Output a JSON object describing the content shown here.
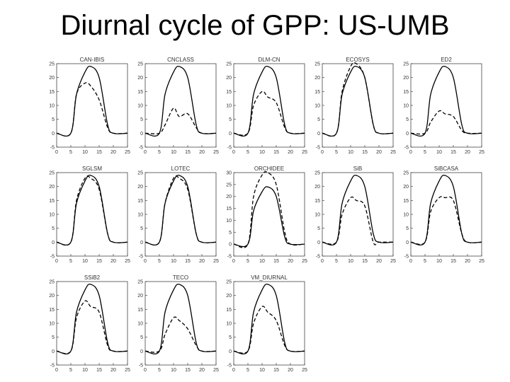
{
  "slide": {
    "title": "Diurnal cycle of GPP: US-UMB"
  },
  "chart_data": [
    {
      "type": "line",
      "title": "CAN-IBIS",
      "x": [
        0,
        5,
        7,
        10,
        12,
        15,
        18,
        20,
        25
      ],
      "xlim": [
        0,
        25
      ],
      "ylim": [
        -5,
        25
      ],
      "yticks": [
        -5,
        0,
        5,
        10,
        15,
        20,
        25
      ],
      "xticks": [
        0,
        5,
        10,
        15,
        20,
        25
      ],
      "series": [
        {
          "style": "solid",
          "values": [
            0,
            0,
            14,
            22,
            24,
            20,
            3,
            0,
            0
          ]
        },
        {
          "style": "dashed",
          "values": [
            0,
            0,
            14,
            18,
            17,
            12,
            2,
            0,
            0
          ]
        }
      ]
    },
    {
      "type": "line",
      "title": "CNCLASS",
      "x": [
        0,
        5,
        7,
        10,
        12,
        15,
        18,
        20,
        25
      ],
      "xlim": [
        0,
        25
      ],
      "ylim": [
        -5,
        25
      ],
      "yticks": [
        -5,
        0,
        5,
        10,
        15,
        20,
        25
      ],
      "xticks": [
        0,
        5,
        10,
        15,
        20,
        25
      ],
      "series": [
        {
          "style": "solid",
          "values": [
            0,
            0,
            14,
            22,
            24,
            20,
            3,
            0,
            0
          ]
        },
        {
          "style": "dashed",
          "values": [
            0,
            0,
            3,
            9,
            6,
            7,
            2,
            0,
            0
          ]
        }
      ]
    },
    {
      "type": "line",
      "title": "DLM-CN",
      "x": [
        0,
        5,
        7,
        10,
        12,
        15,
        18,
        20,
        25
      ],
      "xlim": [
        0,
        25
      ],
      "ylim": [
        -5,
        25
      ],
      "yticks": [
        -5,
        0,
        5,
        10,
        15,
        20,
        25
      ],
      "xticks": [
        0,
        5,
        10,
        15,
        20,
        25
      ],
      "series": [
        {
          "style": "solid",
          "values": [
            0,
            0,
            14,
            22,
            24,
            20,
            3,
            0,
            0
          ]
        },
        {
          "style": "dashed",
          "values": [
            0,
            0,
            10,
            15,
            13,
            11,
            2,
            0,
            0
          ]
        }
      ]
    },
    {
      "type": "line",
      "title": "ECOSYS",
      "x": [
        0,
        5,
        7,
        10,
        12,
        15,
        18,
        20,
        25
      ],
      "xlim": [
        0,
        25
      ],
      "ylim": [
        -5,
        25
      ],
      "yticks": [
        -5,
        0,
        5,
        10,
        15,
        20,
        25
      ],
      "xticks": [
        0,
        5,
        10,
        15,
        20,
        25
      ],
      "series": [
        {
          "style": "solid",
          "values": [
            0,
            0,
            14,
            22,
            24,
            20,
            3,
            0,
            0
          ]
        },
        {
          "style": "dashed",
          "values": [
            0,
            0,
            15,
            24,
            25,
            20,
            3,
            0,
            0
          ]
        }
      ]
    },
    {
      "type": "line",
      "title": "ED2",
      "x": [
        0,
        5,
        7,
        10,
        12,
        15,
        18,
        20,
        25
      ],
      "xlim": [
        0,
        25
      ],
      "ylim": [
        -5,
        25
      ],
      "yticks": [
        -5,
        0,
        5,
        10,
        15,
        20,
        25
      ],
      "xticks": [
        0,
        5,
        10,
        15,
        20,
        25
      ],
      "series": [
        {
          "style": "solid",
          "values": [
            0,
            0,
            14,
            22,
            24,
            20,
            3,
            0,
            0
          ]
        },
        {
          "style": "dashed",
          "values": [
            0,
            0,
            4,
            8,
            7,
            6,
            1,
            0,
            0
          ]
        }
      ]
    },
    {
      "type": "line",
      "title": "SGLSM",
      "x": [
        0,
        5,
        7,
        10,
        12,
        15,
        18,
        20,
        25
      ],
      "xlim": [
        0,
        25
      ],
      "ylim": [
        -5,
        25
      ],
      "yticks": [
        -5,
        0,
        5,
        10,
        15,
        20,
        25
      ],
      "xticks": [
        0,
        5,
        10,
        15,
        20,
        25
      ],
      "series": [
        {
          "style": "solid",
          "values": [
            0,
            0,
            14,
            22,
            24,
            20,
            3,
            0,
            0
          ]
        },
        {
          "style": "dashed",
          "values": [
            0,
            0,
            15,
            23,
            23,
            19,
            3,
            0,
            0
          ]
        }
      ]
    },
    {
      "type": "line",
      "title": "LOTEC",
      "x": [
        0,
        5,
        7,
        10,
        12,
        15,
        18,
        20,
        25
      ],
      "xlim": [
        0,
        25
      ],
      "ylim": [
        -5,
        25
      ],
      "yticks": [
        -5,
        0,
        5,
        10,
        15,
        20,
        25
      ],
      "xticks": [
        0,
        5,
        10,
        15,
        20,
        25
      ],
      "series": [
        {
          "style": "solid",
          "values": [
            0,
            0,
            14,
            22,
            24,
            20,
            3,
            0,
            0
          ]
        },
        {
          "style": "dashed",
          "values": [
            0,
            0,
            14,
            23,
            23,
            19,
            3,
            0,
            0
          ]
        }
      ]
    },
    {
      "type": "line",
      "title": "ORCHIDEE",
      "x": [
        0,
        5,
        7,
        10,
        12,
        15,
        18,
        20,
        25
      ],
      "xlim": [
        0,
        25
      ],
      "ylim": [
        -5,
        30
      ],
      "yticks": [
        -5,
        0,
        5,
        10,
        15,
        20,
        25,
        30
      ],
      "xticks": [
        0,
        5,
        10,
        15,
        20,
        25
      ],
      "series": [
        {
          "style": "solid",
          "values": [
            0,
            0,
            14,
            22,
            24,
            20,
            3,
            0,
            0
          ]
        },
        {
          "style": "dashed",
          "values": [
            0,
            0,
            20,
            29,
            30,
            25,
            5,
            0,
            0
          ]
        }
      ]
    },
    {
      "type": "line",
      "title": "SiB",
      "x": [
        0,
        5,
        7,
        10,
        12,
        15,
        18,
        20,
        25
      ],
      "xlim": [
        0,
        25
      ],
      "ylim": [
        -5,
        25
      ],
      "yticks": [
        -5,
        0,
        5,
        10,
        15,
        20,
        25
      ],
      "xticks": [
        0,
        5,
        10,
        15,
        20,
        25
      ],
      "series": [
        {
          "style": "solid",
          "values": [
            0,
            0,
            14,
            22,
            24,
            20,
            3,
            0,
            0
          ]
        },
        {
          "style": "dashed",
          "values": [
            0,
            0,
            10,
            16,
            15,
            13,
            0,
            0,
            0
          ]
        }
      ]
    },
    {
      "type": "line",
      "title": "SiBCASA",
      "x": [
        0,
        5,
        7,
        10,
        12,
        15,
        18,
        20,
        25
      ],
      "xlim": [
        0,
        25
      ],
      "ylim": [
        -5,
        25
      ],
      "yticks": [
        -5,
        0,
        5,
        10,
        15,
        20,
        25
      ],
      "xticks": [
        0,
        5,
        10,
        15,
        20,
        25
      ],
      "series": [
        {
          "style": "solid",
          "values": [
            0,
            0,
            14,
            22,
            24,
            20,
            3,
            0,
            0
          ]
        },
        {
          "style": "dashed",
          "values": [
            0,
            0,
            11,
            16,
            16,
            15,
            3,
            0,
            0
          ]
        }
      ]
    },
    {
      "type": "line",
      "title": "SSiB2",
      "x": [
        0,
        5,
        7,
        10,
        12,
        15,
        18,
        20,
        25
      ],
      "xlim": [
        0,
        25
      ],
      "ylim": [
        -5,
        25
      ],
      "yticks": [
        -5,
        0,
        5,
        10,
        15,
        20,
        25
      ],
      "xticks": [
        0,
        5,
        10,
        15,
        20,
        25
      ],
      "series": [
        {
          "style": "solid",
          "values": [
            0,
            0,
            14,
            22,
            24,
            20,
            3,
            0,
            0
          ]
        },
        {
          "style": "dashed",
          "values": [
            0,
            0,
            12,
            18,
            16,
            14,
            2,
            0,
            0
          ]
        }
      ]
    },
    {
      "type": "line",
      "title": "TECO",
      "x": [
        0,
        5,
        7,
        10,
        12,
        15,
        18,
        20,
        25
      ],
      "xlim": [
        0,
        25
      ],
      "ylim": [
        -5,
        25
      ],
      "yticks": [
        -5,
        0,
        5,
        10,
        15,
        20,
        25
      ],
      "xticks": [
        0,
        5,
        10,
        15,
        20,
        25
      ],
      "series": [
        {
          "style": "solid",
          "values": [
            0,
            0,
            14,
            22,
            24,
            20,
            3,
            0,
            0
          ]
        },
        {
          "style": "dashed",
          "values": [
            0,
            0,
            6,
            12,
            11,
            8,
            2,
            0,
            0
          ]
        }
      ]
    },
    {
      "type": "line",
      "title": "VM_DIURNAL",
      "x": [
        0,
        5,
        7,
        10,
        12,
        15,
        18,
        20,
        25
      ],
      "xlim": [
        0,
        25
      ],
      "ylim": [
        -5,
        25
      ],
      "yticks": [
        -5,
        0,
        5,
        10,
        15,
        20,
        25
      ],
      "xticks": [
        0,
        5,
        10,
        15,
        20,
        25
      ],
      "series": [
        {
          "style": "solid",
          "values": [
            0,
            0,
            14,
            22,
            24,
            20,
            3,
            0,
            0
          ]
        },
        {
          "style": "dashed",
          "values": [
            0,
            0,
            10,
            16,
            14,
            11,
            2,
            0,
            0
          ]
        }
      ]
    }
  ]
}
